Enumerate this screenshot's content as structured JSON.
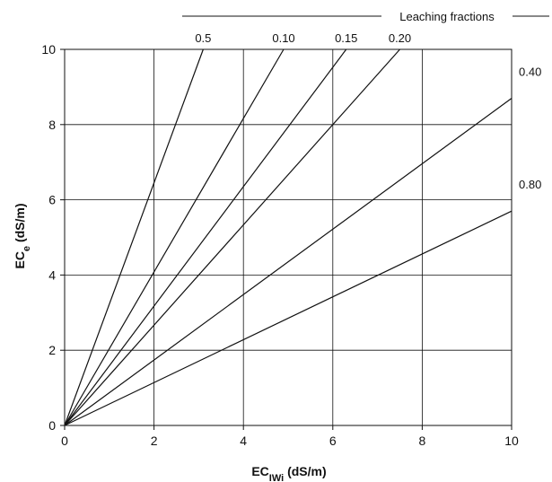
{
  "chart_data": {
    "type": "line",
    "title": "",
    "xlabel": {
      "main": "EC",
      "sub": "IWi",
      "unit": " (dS/m)"
    },
    "ylabel": {
      "main": "EC",
      "sub": "e",
      "unit": " (dS/m)"
    },
    "xlim": [
      0,
      10
    ],
    "ylim": [
      0,
      10
    ],
    "xticks": [
      "0",
      "2",
      "4",
      "6",
      "8",
      "10"
    ],
    "yticks": [
      "0",
      "2",
      "4",
      "6",
      "8",
      "10"
    ],
    "grid": true,
    "legend_title": "Leaching fractions",
    "series": [
      {
        "name": "0.5",
        "x": [
          0,
          3.1
        ],
        "y": [
          0,
          10
        ]
      },
      {
        "name": "0.10",
        "x": [
          0,
          4.9
        ],
        "y": [
          0,
          10
        ]
      },
      {
        "name": "0.15",
        "x": [
          0,
          6.3
        ],
        "y": [
          0,
          10
        ]
      },
      {
        "name": "0.20",
        "x": [
          0,
          7.5
        ],
        "y": [
          0,
          10
        ]
      },
      {
        "name": "0.40",
        "x": [
          0,
          10
        ],
        "y": [
          0,
          8.7
        ]
      },
      {
        "name": "0.80",
        "x": [
          0,
          10
        ],
        "y": [
          0,
          5.7
        ]
      }
    ],
    "line_color": "#111111",
    "grid_color": "#111111"
  }
}
